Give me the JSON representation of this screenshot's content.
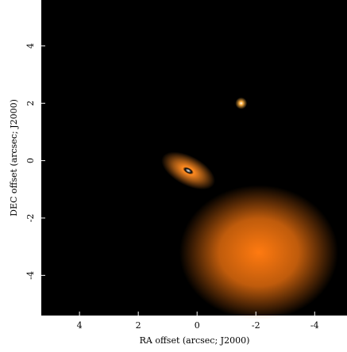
{
  "chart_data": {
    "type": "image",
    "xlabel": "RA offset (arcsec; J2000)",
    "ylabel": "DEC offset (arcsec; J2000)",
    "xlim": [
      5.3,
      -5.1
    ],
    "ylim": [
      -5.4,
      5.6
    ],
    "xticks": [
      4,
      2,
      0,
      -2,
      -4
    ],
    "yticks": [
      -4,
      -2,
      0,
      2,
      4
    ],
    "sources": [
      {
        "x": -2.1,
        "y": -3.2,
        "size": 2.7,
        "axis_ratio": 0.85,
        "angle": 0,
        "color": "#ff7a10"
      },
      {
        "x": 0.3,
        "y": -0.35,
        "size": 1.0,
        "axis_ratio": 0.5,
        "angle": 28,
        "color": "#ff8a20"
      },
      {
        "x": -1.5,
        "y": 2.0,
        "size": 0.2,
        "axis_ratio": 1,
        "angle": 0,
        "color": "#ffb040"
      }
    ]
  }
}
